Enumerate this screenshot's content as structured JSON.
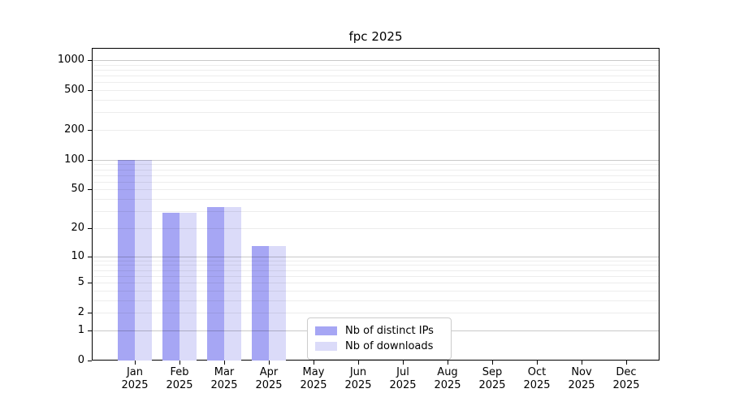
{
  "title": "fpc 2025",
  "colors": {
    "background": "#ffffff",
    "axis": "#000000",
    "grid_major": "#c9c9c9",
    "grid_minor": "#ededed",
    "ips_bar": "#a6a6f4",
    "downloads_bar": "#dbdbf9",
    "legend_border": "#cccccc"
  },
  "chart_data": {
    "type": "bar",
    "title": "fpc 2025",
    "x_months": [
      "Jan",
      "Feb",
      "Mar",
      "Apr",
      "May",
      "Jun",
      "Jul",
      "Aug",
      "Sep",
      "Oct",
      "Nov",
      "Dec"
    ],
    "x_year": "2025",
    "categories": [
      "Jan 2025",
      "Feb 2025",
      "Mar 2025",
      "Apr 2025",
      "May 2025",
      "Jun 2025",
      "Jul 2025",
      "Aug 2025",
      "Sep 2025",
      "Oct 2025",
      "Nov 2025",
      "Dec 2025"
    ],
    "series": [
      {
        "name": "Nb of distinct IPs",
        "color": "#a6a6f4",
        "values": [
          100,
          29,
          33,
          13,
          0,
          0,
          0,
          0,
          0,
          0,
          0,
          0
        ]
      },
      {
        "name": "Nb of downloads",
        "color": "#dbdbf9",
        "values": [
          100,
          29,
          33,
          13,
          0,
          0,
          0,
          0,
          0,
          0,
          0,
          0
        ]
      }
    ],
    "y_ticks": [
      1000,
      500,
      200,
      100,
      50,
      20,
      10,
      5,
      2,
      1,
      0
    ],
    "y_scale": "log10(value+1)",
    "ylim": [
      0,
      1300
    ],
    "grid": "horizontal, minor log divisions, drawn over bars",
    "legend_position": "lower center-left inside plot"
  },
  "legend": {
    "items": [
      {
        "label": "Nb of distinct IPs"
      },
      {
        "label": "Nb of downloads"
      }
    ]
  }
}
